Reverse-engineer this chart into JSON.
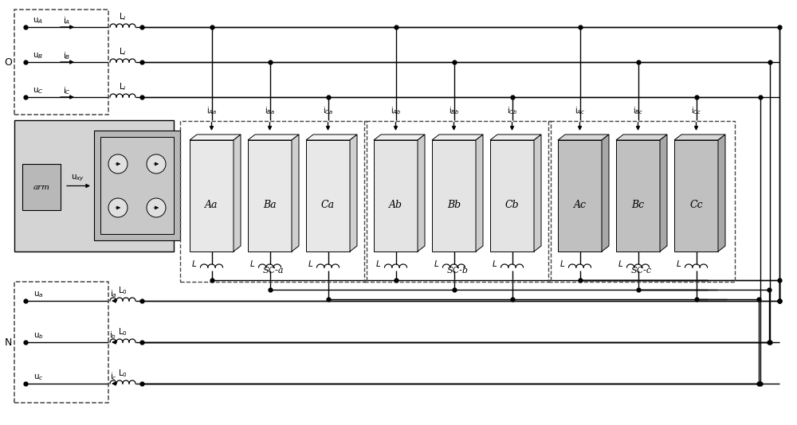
{
  "fig_width": 10.0,
  "fig_height": 5.34,
  "bg_color": "#ffffff",
  "lc": "#000000",
  "block_labels": [
    "Aa",
    "Ba",
    "Ca",
    "Ab",
    "Bb",
    "Cb",
    "Ac",
    "Bc",
    "Cc"
  ],
  "sc_labels": [
    "SC-a",
    "SC-b",
    "SC-c"
  ],
  "block_colors_front": [
    "#e8e8e8",
    "#e8e8e8",
    "#e8e8e8",
    "#e4e4e4",
    "#e4e4e4",
    "#e4e4e4",
    "#c0c0c0",
    "#c0c0c0",
    "#c0c0c0"
  ],
  "block_colors_side": [
    "#d0d0d0",
    "#d0d0d0",
    "#d0d0d0",
    "#cccccc",
    "#cccccc",
    "#cccccc",
    "#a8a8a8",
    "#a8a8a8",
    "#a8a8a8"
  ],
  "block_colors_top": [
    "#f4f4f4",
    "#f4f4f4",
    "#f4f4f4",
    "#f0f0f0",
    "#f0f0f0",
    "#f0f0f0",
    "#d8d8d8",
    "#d8d8d8",
    "#d8d8d8"
  ]
}
